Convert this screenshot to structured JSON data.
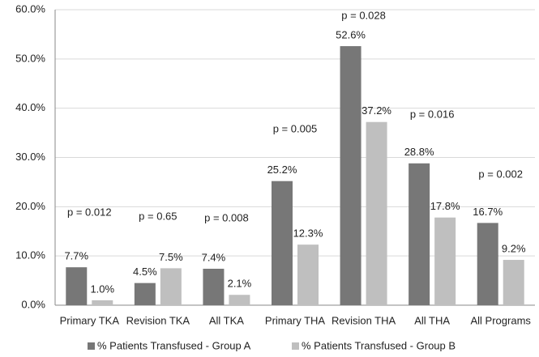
{
  "chart_data": {
    "type": "bar",
    "categories": [
      "Primary TKA",
      "Revision TKA",
      "All TKA",
      "Primary THA",
      "Revision THA",
      "All THA",
      "All Programs"
    ],
    "series": [
      {
        "name": "% Patients Transfused - Group A",
        "color": "#777777",
        "values": [
          7.7,
          4.5,
          7.4,
          25.2,
          52.6,
          28.8,
          16.7
        ],
        "value_labels": [
          "7.7%",
          "4.5%",
          "7.4%",
          "25.2%",
          "52.6%",
          "28.8%",
          "16.7%"
        ]
      },
      {
        "name": "% Patients Transfused - Group B",
        "color": "#bfbfbf",
        "values": [
          1.0,
          7.5,
          2.1,
          12.3,
          37.2,
          17.8,
          9.2
        ],
        "value_labels": [
          "1.0%",
          "7.5%",
          "2.1%",
          "12.3%",
          "37.2%",
          "17.8%",
          "9.2%"
        ]
      }
    ],
    "annotations": [
      "p = 0.012",
      "p = 0.65",
      "p = 0.008",
      "p = 0.005",
      "p = 0.028",
      "p = 0.016",
      "p = 0.002"
    ],
    "ylim": [
      0,
      60
    ],
    "yticks": [
      {
        "value": 0,
        "label": "0.0%"
      },
      {
        "value": 10,
        "label": "10.0%"
      },
      {
        "value": 20,
        "label": "20.0%"
      },
      {
        "value": 30,
        "label": "30.0%"
      },
      {
        "value": 40,
        "label": "40.0%"
      },
      {
        "value": 50,
        "label": "50.0%"
      },
      {
        "value": 60,
        "label": "60.0%"
      }
    ],
    "grid": true,
    "legend": "bottom"
  }
}
